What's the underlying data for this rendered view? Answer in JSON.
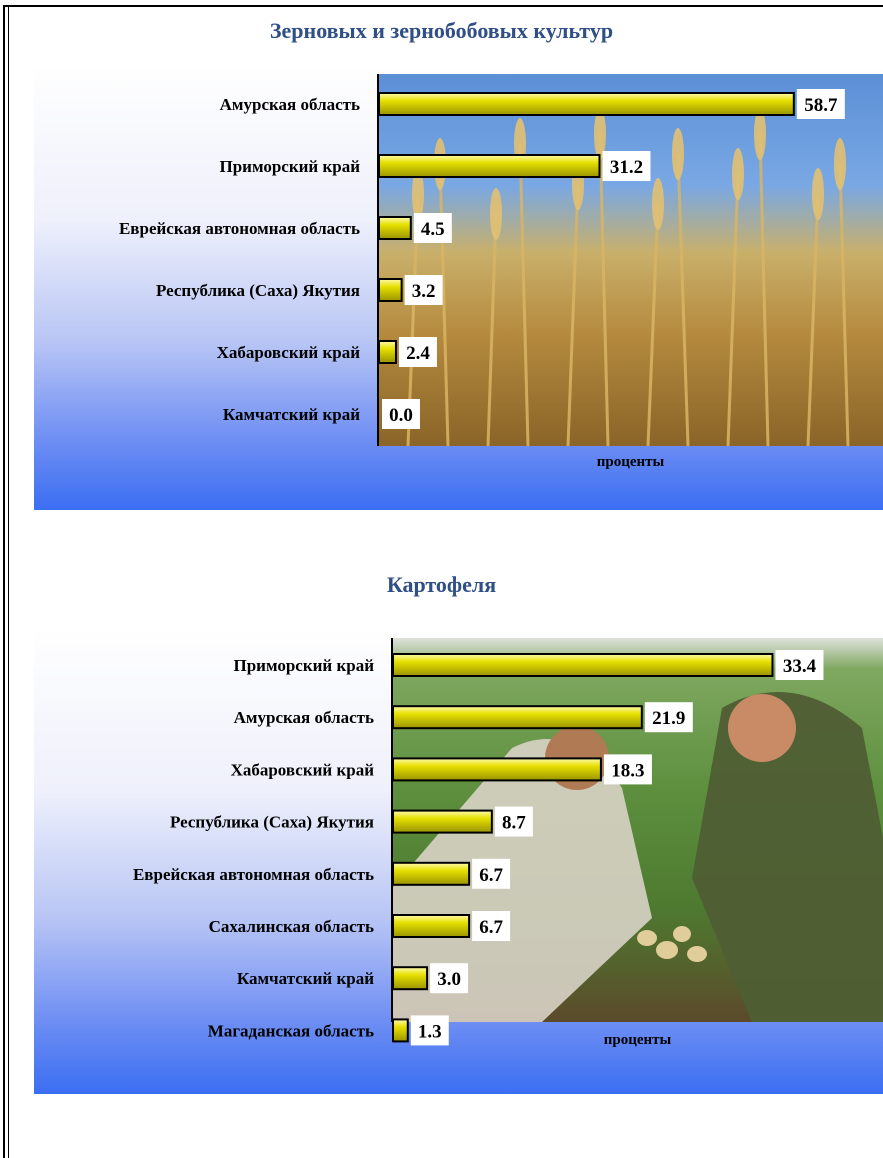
{
  "chart_data": [
    {
      "type": "bar",
      "orientation": "horizontal",
      "title": "Зерновых и зернобобовых культур",
      "xlabel": "проценты",
      "categories": [
        "Амурская область",
        "Приморский край",
        "Еврейская автономная область",
        "Республика (Саха) Якутия",
        "Хабаровский край",
        "Камчатский край"
      ],
      "values": [
        58.7,
        31.2,
        4.5,
        3.2,
        2.4,
        0.0
      ],
      "value_labels": [
        "58.7",
        "31.2",
        "4.5",
        "3.2",
        "2.4",
        "0.0"
      ],
      "xlim": [
        0,
        60
      ],
      "bar_color": "#e6e000",
      "background_image": "wheat-field-photo"
    },
    {
      "type": "bar",
      "orientation": "horizontal",
      "title": "Картофеля",
      "xlabel": "проценты",
      "categories": [
        "Приморский край",
        "Амурская область",
        "Хабаровский край",
        "Республика (Саха) Якутия",
        "Еврейская автономная область",
        "Сахалинская область",
        "Камчатский край",
        "Магаданская область"
      ],
      "values": [
        33.4,
        21.9,
        18.3,
        8.7,
        6.7,
        6.7,
        3.0,
        1.3
      ],
      "value_labels": [
        "33.4",
        "21.9",
        "18.3",
        "8.7",
        "6.7",
        "6.7",
        "3.0",
        "1.3"
      ],
      "xlim": [
        0,
        36
      ],
      "bar_color": "#e6e000",
      "background_image": "potato-harvest-photo"
    }
  ]
}
